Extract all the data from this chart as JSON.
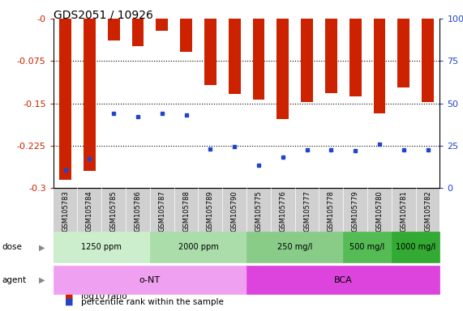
{
  "title": "GDS2051 / 10926",
  "samples": [
    "GSM105783",
    "GSM105784",
    "GSM105785",
    "GSM105786",
    "GSM105787",
    "GSM105788",
    "GSM105789",
    "GSM105790",
    "GSM105775",
    "GSM105776",
    "GSM105777",
    "GSM105778",
    "GSM105779",
    "GSM105780",
    "GSM105781",
    "GSM105782"
  ],
  "log10_ratio": [
    -0.285,
    -0.27,
    -0.038,
    -0.048,
    -0.022,
    -0.058,
    -0.118,
    -0.133,
    -0.143,
    -0.178,
    -0.148,
    -0.132,
    -0.137,
    -0.168,
    -0.122,
    -0.148
  ],
  "percentile_rank": [
    0.105,
    0.175,
    0.44,
    0.42,
    0.44,
    0.43,
    0.23,
    0.245,
    0.135,
    0.185,
    0.225,
    0.225,
    0.22,
    0.26,
    0.225,
    0.225
  ],
  "ylim_left": [
    -0.3,
    0.0
  ],
  "yticks_left": [
    0.0,
    -0.075,
    -0.15,
    -0.225,
    -0.3
  ],
  "ytick_labels_left": [
    "-0",
    "-0.075",
    "-0.15",
    "-0.225",
    "-0.3"
  ],
  "yticks_right": [
    0.0,
    0.25,
    0.5,
    0.75,
    1.0
  ],
  "ytick_labels_right": [
    "0",
    "25",
    "50",
    "75",
    "100%"
  ],
  "bar_color": "#cc2200",
  "dot_color": "#2244cc",
  "dose_groups": [
    {
      "label": "1250 ppm",
      "start": 0,
      "end": 4,
      "color": "#cceecc"
    },
    {
      "label": "2000 ppm",
      "start": 4,
      "end": 8,
      "color": "#aaddaa"
    },
    {
      "label": "250 mg/l",
      "start": 8,
      "end": 12,
      "color": "#88cc88"
    },
    {
      "label": "500 mg/l",
      "start": 12,
      "end": 14,
      "color": "#55bb55"
    },
    {
      "label": "1000 mg/l",
      "start": 14,
      "end": 16,
      "color": "#33aa33"
    }
  ],
  "agent_groups": [
    {
      "label": "o-NT",
      "start": 0,
      "end": 8,
      "color": "#f0a0f0"
    },
    {
      "label": "BCA",
      "start": 8,
      "end": 16,
      "color": "#dd44dd"
    }
  ],
  "background_color": "#ffffff",
  "axis_color_left": "#cc2200",
  "axis_color_right": "#2244cc",
  "tick_fontsize": 8,
  "bar_width": 0.5
}
